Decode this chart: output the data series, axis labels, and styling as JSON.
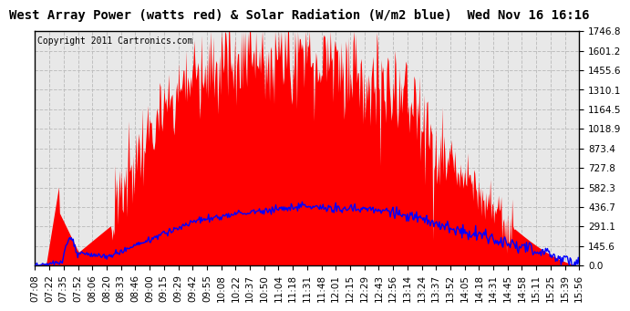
{
  "title": "West Array Power (watts red) & Solar Radiation (W/m2 blue)  Wed Nov 16 16:16",
  "copyright": "Copyright 2011 Cartronics.com",
  "y_ticks": [
    0.0,
    145.6,
    291.1,
    436.7,
    582.3,
    727.8,
    873.4,
    1018.9,
    1164.5,
    1310.1,
    1455.6,
    1601.2,
    1746.8
  ],
  "x_labels": [
    "07:08",
    "07:22",
    "07:35",
    "07:52",
    "08:06",
    "08:20",
    "08:33",
    "08:46",
    "09:00",
    "09:15",
    "09:29",
    "09:42",
    "09:55",
    "10:08",
    "10:22",
    "10:37",
    "10:50",
    "11:04",
    "11:18",
    "11:31",
    "11:48",
    "12:01",
    "12:15",
    "12:29",
    "12:43",
    "12:56",
    "13:14",
    "13:24",
    "13:37",
    "13:52",
    "14:05",
    "14:18",
    "14:31",
    "14:45",
    "14:58",
    "15:11",
    "15:25",
    "15:39",
    "15:56"
  ],
  "bg_color": "#ffffff",
  "plot_bg_color": "#e8e8e8",
  "grid_color": "#bbbbbb",
  "fill_color": "red",
  "line_color": "blue",
  "title_fontsize": 10,
  "copyright_fontsize": 7,
  "tick_fontsize": 7.5,
  "y_max": 1746.8,
  "y_min": 0.0
}
